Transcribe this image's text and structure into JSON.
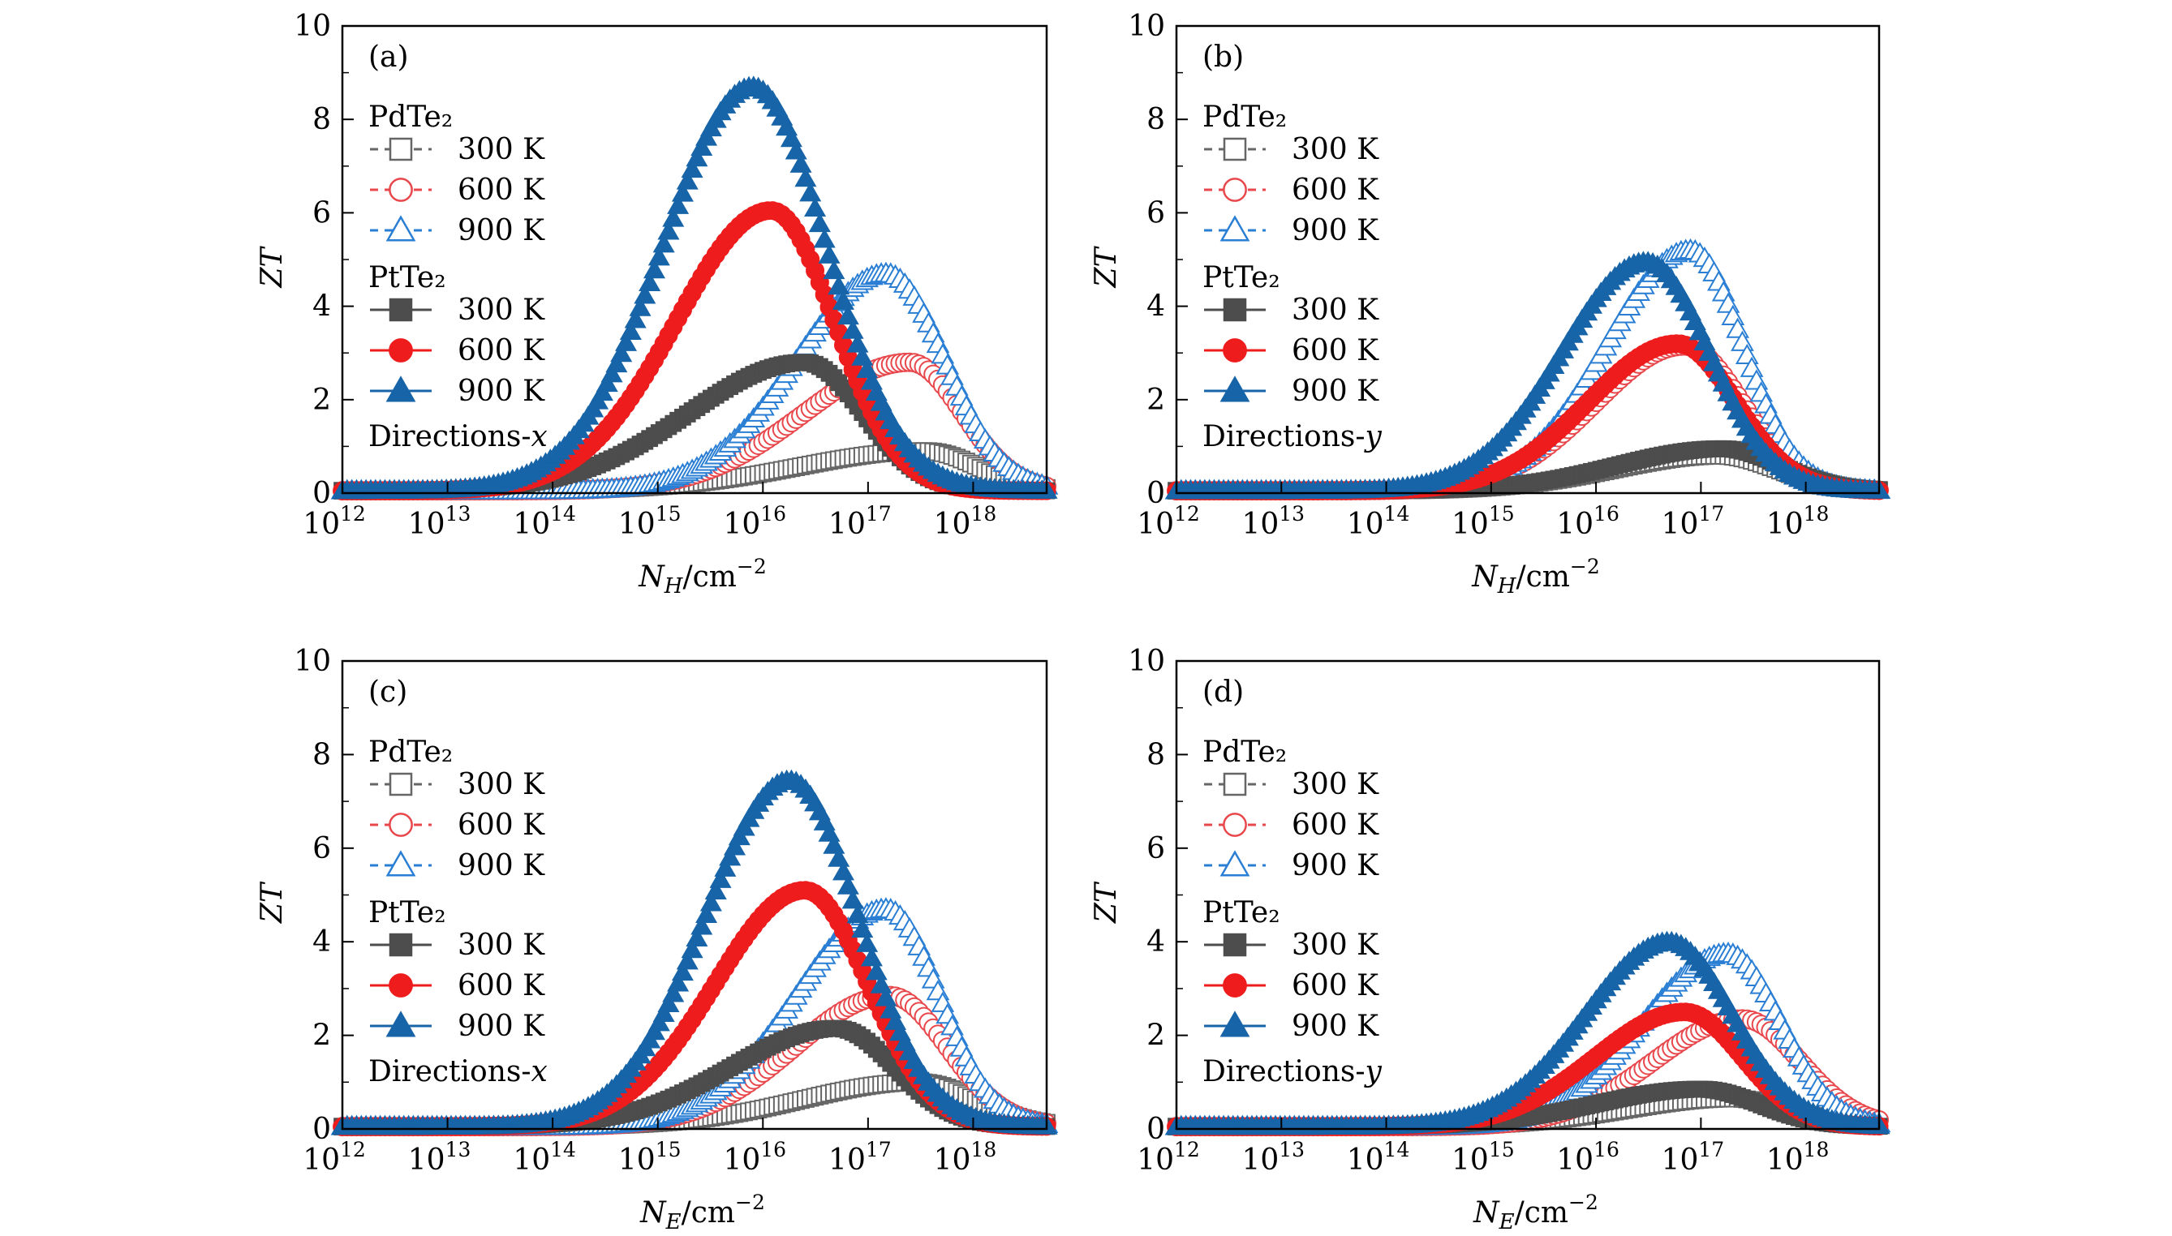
{
  "colors": {
    "pd300": "#666666",
    "pd600": "#e8474c",
    "pd900": "#2a7fd4",
    "pt300": "#4d4d4d",
    "pt600": "#ee1c1c",
    "pt900": "#1764a8"
  },
  "legend": {
    "pd_group": "PdTe₂",
    "pt_group": "PtTe₂",
    "t300": "300 K",
    "t600": "600 K",
    "t900": "900 K"
  },
  "chart_data": [
    {
      "type": "scatter",
      "panel_label": "(a)",
      "direction_label": "Directions-",
      "direction_var": "x",
      "ylabel": "ZT",
      "xlabel_sym": "N",
      "xlabel_sub": "H",
      "xlabel_unit": "/cm",
      "xlabel_exp": "−2",
      "xscale": "log",
      "xlim": [
        1000000000000.0,
        5e+18
      ],
      "ylim": [
        0,
        10
      ],
      "yticks": [
        0,
        2,
        4,
        6,
        8,
        10
      ],
      "xtick_exponents": [
        12,
        13,
        14,
        15,
        16,
        17,
        18
      ],
      "series": [
        {
          "name": "PdTe₂ 300 K",
          "marker": "square-open",
          "peak_x": 3.5e+17,
          "peak_y": 0.85,
          "width_left": 1.2,
          "width_right": 0.5
        },
        {
          "name": "PdTe₂ 600 K",
          "marker": "circle-open",
          "peak_x": 2.5e+17,
          "peak_y": 2.75,
          "width_left": 1.0,
          "width_right": 0.5
        },
        {
          "name": "PdTe₂ 900 K",
          "marker": "triangle-open",
          "peak_x": 1.5e+17,
          "peak_y": 4.65,
          "width_left": 0.85,
          "width_right": 0.55
        },
        {
          "name": "PtTe₂ 300 K",
          "marker": "square",
          "peak_x": 2.5e+16,
          "peak_y": 2.75,
          "width_left": 1.1,
          "width_right": 0.55
        },
        {
          "name": "PtTe₂ 600 K",
          "marker": "circle",
          "peak_x": 1.2e+16,
          "peak_y": 6.0,
          "width_left": 0.9,
          "width_right": 0.6
        },
        {
          "name": "PtTe₂ 900 K",
          "marker": "triangle",
          "peak_x": 8000000000000000.0,
          "peak_y": 8.65,
          "width_left": 0.85,
          "width_right": 0.7
        }
      ]
    },
    {
      "type": "scatter",
      "panel_label": "(b)",
      "direction_label": "Directions-",
      "direction_var": "y",
      "ylabel": "ZT",
      "xlabel_sym": "N",
      "xlabel_sub": "H",
      "xlabel_unit": "/cm",
      "xlabel_exp": "−2",
      "xscale": "log",
      "xlim": [
        1000000000000.0,
        5e+18
      ],
      "ylim": [
        0,
        10
      ],
      "yticks": [
        0,
        2,
        4,
        6,
        8,
        10
      ],
      "xtick_exponents": [
        12,
        13,
        14,
        15,
        16,
        17,
        18
      ],
      "series": [
        {
          "name": "PdTe₂ 300 K",
          "marker": "square-open",
          "peak_x": 1.5e+17,
          "peak_y": 0.75,
          "width_left": 1.0,
          "width_right": 0.55
        },
        {
          "name": "PdTe₂ 600 K",
          "marker": "circle-open",
          "peak_x": 7e+16,
          "peak_y": 3.1,
          "width_left": 0.85,
          "width_right": 0.55
        },
        {
          "name": "PdTe₂ 900 K",
          "marker": "triangle-open",
          "peak_x": 8e+16,
          "peak_y": 5.15,
          "width_left": 0.8,
          "width_right": 0.5
        },
        {
          "name": "PtTe₂ 300 K",
          "marker": "square",
          "peak_x": 1.6e+17,
          "peak_y": 0.9,
          "width_left": 1.0,
          "width_right": 0.55
        },
        {
          "name": "PtTe₂ 600 K",
          "marker": "circle",
          "peak_x": 6e+16,
          "peak_y": 3.15,
          "width_left": 0.85,
          "width_right": 0.55
        },
        {
          "name": "PtTe₂ 900 K",
          "marker": "triangle",
          "peak_x": 3e+16,
          "peak_y": 4.9,
          "width_left": 0.8,
          "width_right": 0.6
        }
      ]
    },
    {
      "type": "scatter",
      "panel_label": "(c)",
      "direction_label": "Directions-",
      "direction_var": "x",
      "ylabel": "ZT",
      "xlabel_sym": "N",
      "xlabel_sub": "E",
      "xlabel_unit": "/cm",
      "xlabel_exp": "−2",
      "xscale": "log",
      "xlim": [
        1000000000000.0,
        5e+18
      ],
      "ylim": [
        0,
        10
      ],
      "yticks": [
        0,
        2,
        4,
        6,
        8,
        10
      ],
      "xtick_exponents": [
        12,
        13,
        14,
        15,
        16,
        17,
        18
      ],
      "series": [
        {
          "name": "PdTe₂ 300 K",
          "marker": "square-open",
          "peak_x": 3e+17,
          "peak_y": 0.95,
          "width_left": 1.1,
          "width_right": 0.55
        },
        {
          "name": "PdTe₂ 600 K",
          "marker": "circle-open",
          "peak_x": 1.6e+17,
          "peak_y": 2.8,
          "width_left": 0.9,
          "width_right": 0.55
        },
        {
          "name": "PdTe₂ 900 K",
          "marker": "triangle-open",
          "peak_x": 1.5e+17,
          "peak_y": 4.65,
          "width_left": 0.85,
          "width_right": 0.5
        },
        {
          "name": "PtTe₂ 300 K",
          "marker": "square",
          "peak_x": 5e+16,
          "peak_y": 2.1,
          "width_left": 1.0,
          "width_right": 0.55
        },
        {
          "name": "PtTe₂ 600 K",
          "marker": "circle",
          "peak_x": 2.5e+16,
          "peak_y": 5.05,
          "width_left": 0.85,
          "width_right": 0.6
        },
        {
          "name": "PtTe₂ 900 K",
          "marker": "triangle",
          "peak_x": 1.8e+16,
          "peak_y": 7.4,
          "width_left": 0.8,
          "width_right": 0.65
        }
      ]
    },
    {
      "type": "scatter",
      "panel_label": "(d)",
      "direction_label": "Directions-",
      "direction_var": "y",
      "ylabel": "ZT",
      "xlabel_sym": "N",
      "xlabel_sub": "E",
      "xlabel_unit": "/cm",
      "xlabel_exp": "−2",
      "xscale": "log",
      "xlim": [
        1000000000000.0,
        5e+18
      ],
      "ylim": [
        0,
        10
      ],
      "yticks": [
        0,
        2,
        4,
        6,
        8,
        10
      ],
      "xtick_exponents": [
        12,
        13,
        14,
        15,
        16,
        17,
        18
      ],
      "series": [
        {
          "name": "PdTe₂ 300 K",
          "marker": "square-open",
          "peak_x": 2e+17,
          "peak_y": 0.6,
          "width_left": 1.0,
          "width_right": 0.55
        },
        {
          "name": "PdTe₂ 600 K",
          "marker": "circle-open",
          "peak_x": 2.5e+17,
          "peak_y": 2.3,
          "width_left": 0.85,
          "width_right": 0.55
        },
        {
          "name": "PdTe₂ 900 K",
          "marker": "triangle-open",
          "peak_x": 1.8e+17,
          "peak_y": 3.7,
          "width_left": 0.8,
          "width_right": 0.5
        },
        {
          "name": "PtTe₂ 300 K",
          "marker": "square",
          "peak_x": 1e+17,
          "peak_y": 0.8,
          "width_left": 1.0,
          "width_right": 0.55
        },
        {
          "name": "PtTe₂ 600 K",
          "marker": "circle",
          "peak_x": 7e+16,
          "peak_y": 2.45,
          "width_left": 0.85,
          "width_right": 0.55
        },
        {
          "name": "PtTe₂ 900 K",
          "marker": "triangle",
          "peak_x": 5e+16,
          "peak_y": 3.95,
          "width_left": 0.8,
          "width_right": 0.6
        }
      ]
    }
  ]
}
